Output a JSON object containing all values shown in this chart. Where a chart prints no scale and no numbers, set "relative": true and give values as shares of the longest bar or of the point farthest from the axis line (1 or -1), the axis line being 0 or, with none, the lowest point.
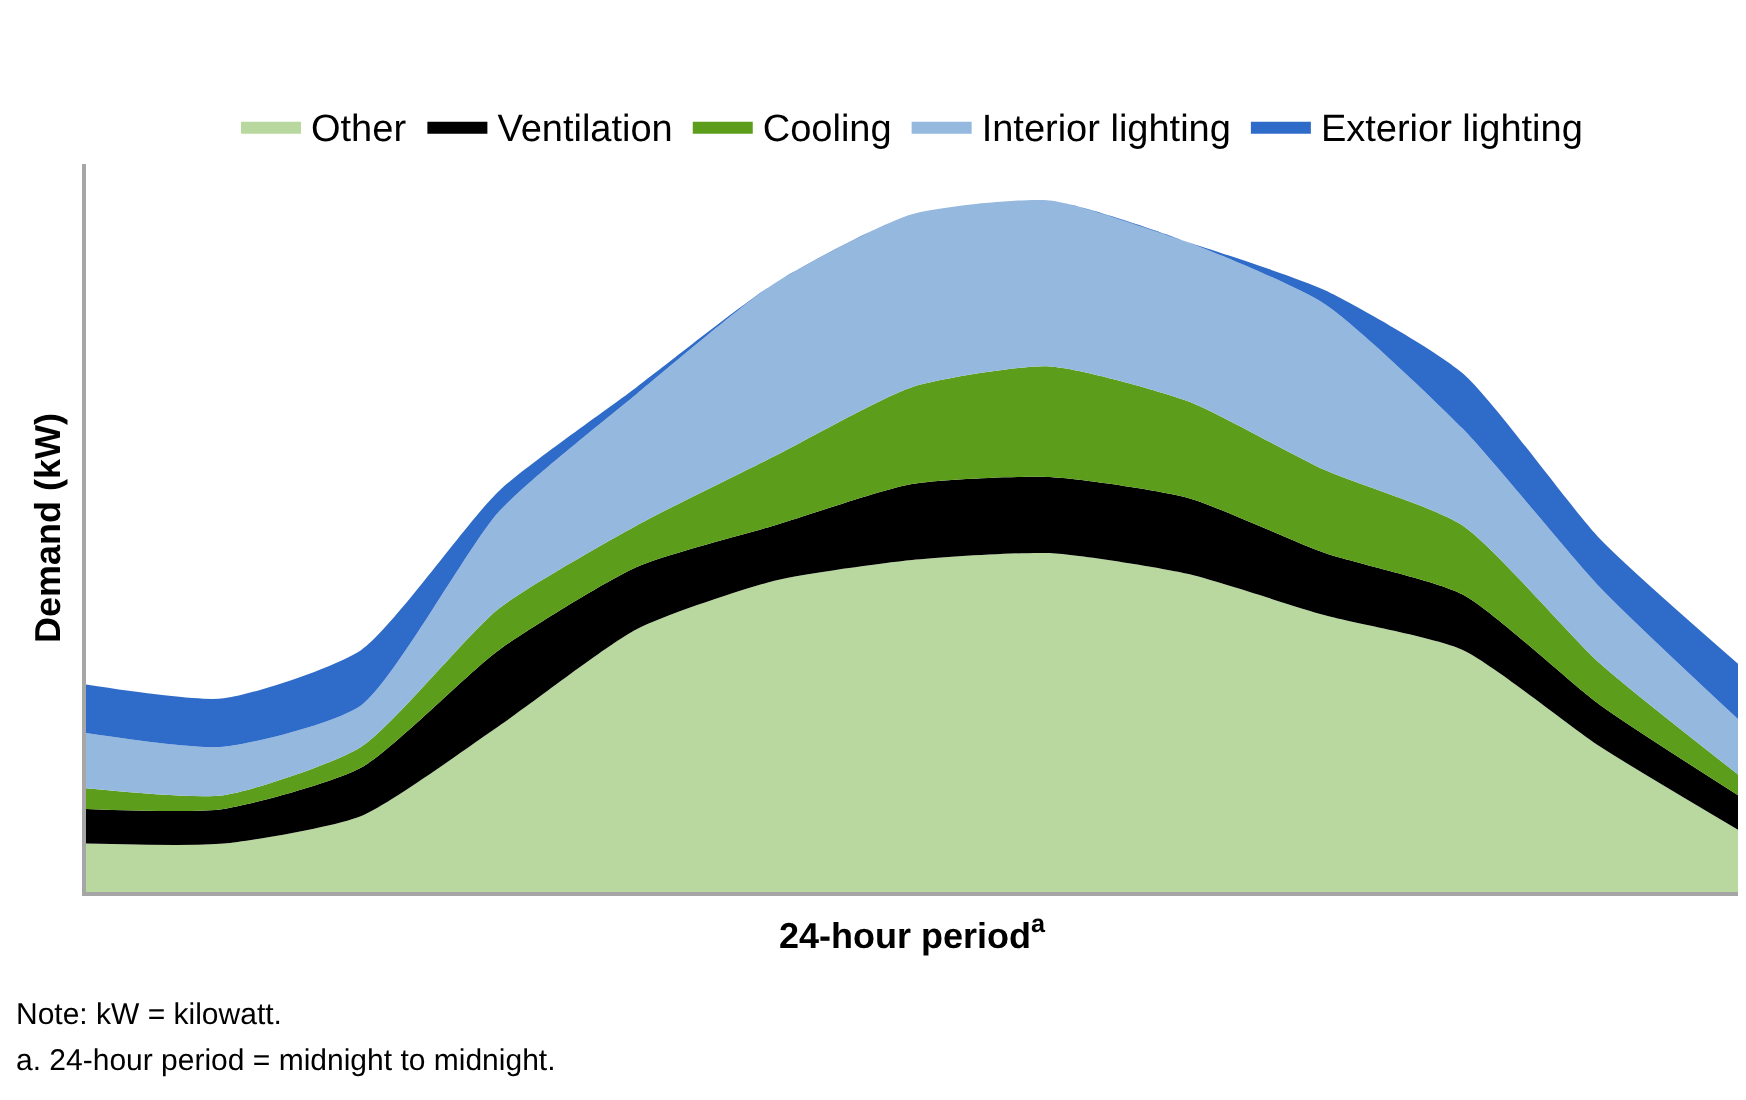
{
  "chart_data": {
    "type": "area",
    "stacked": true,
    "relative": true,
    "xlabel": "24-hour period$^{a}$",
    "ylabel": "Demand (kW)",
    "legend": "top",
    "categories": [
      null,
      null,
      null,
      null,
      null,
      null,
      null,
      null,
      null,
      null,
      null,
      null,
      null
    ],
    "series": [
      {
        "name": "Other",
        "color": "#b9d89f",
        "values": [
          0.07,
          0.07,
          0.11,
          0.24,
          0.38,
          0.45,
          0.48,
          0.49,
          0.46,
          0.4,
          0.35,
          0.21,
          0.09
        ]
      },
      {
        "name": "Ventilation",
        "color": "#000000",
        "values": [
          0.05,
          0.05,
          0.07,
          0.11,
          0.09,
          0.08,
          0.11,
          0.11,
          0.11,
          0.09,
          0.08,
          0.06,
          0.05
        ]
      },
      {
        "name": "Cooling",
        "color": "#5c9e1c",
        "values": [
          0.03,
          0.02,
          0.03,
          0.06,
          0.06,
          0.1,
          0.14,
          0.16,
          0.14,
          0.12,
          0.1,
          0.06,
          0.03
        ]
      },
      {
        "name": "Interior lighting",
        "color": "#95b8de",
        "values": [
          0.08,
          0.07,
          0.06,
          0.14,
          0.19,
          0.25,
          0.25,
          0.24,
          0.23,
          0.24,
          0.14,
          0.11,
          0.08
        ]
      },
      {
        "name": "Exterior lighting",
        "color": "#2f6bc8",
        "values": [
          0.07,
          0.07,
          0.08,
          0.03,
          0.01,
          0,
          0,
          0,
          0,
          0.02,
          0.08,
          0.07,
          0.08
        ]
      }
    ],
    "annotations": [
      "Note: kW = kilowatt.",
      "a. 24-hour period = midnight to midnight."
    ]
  }
}
